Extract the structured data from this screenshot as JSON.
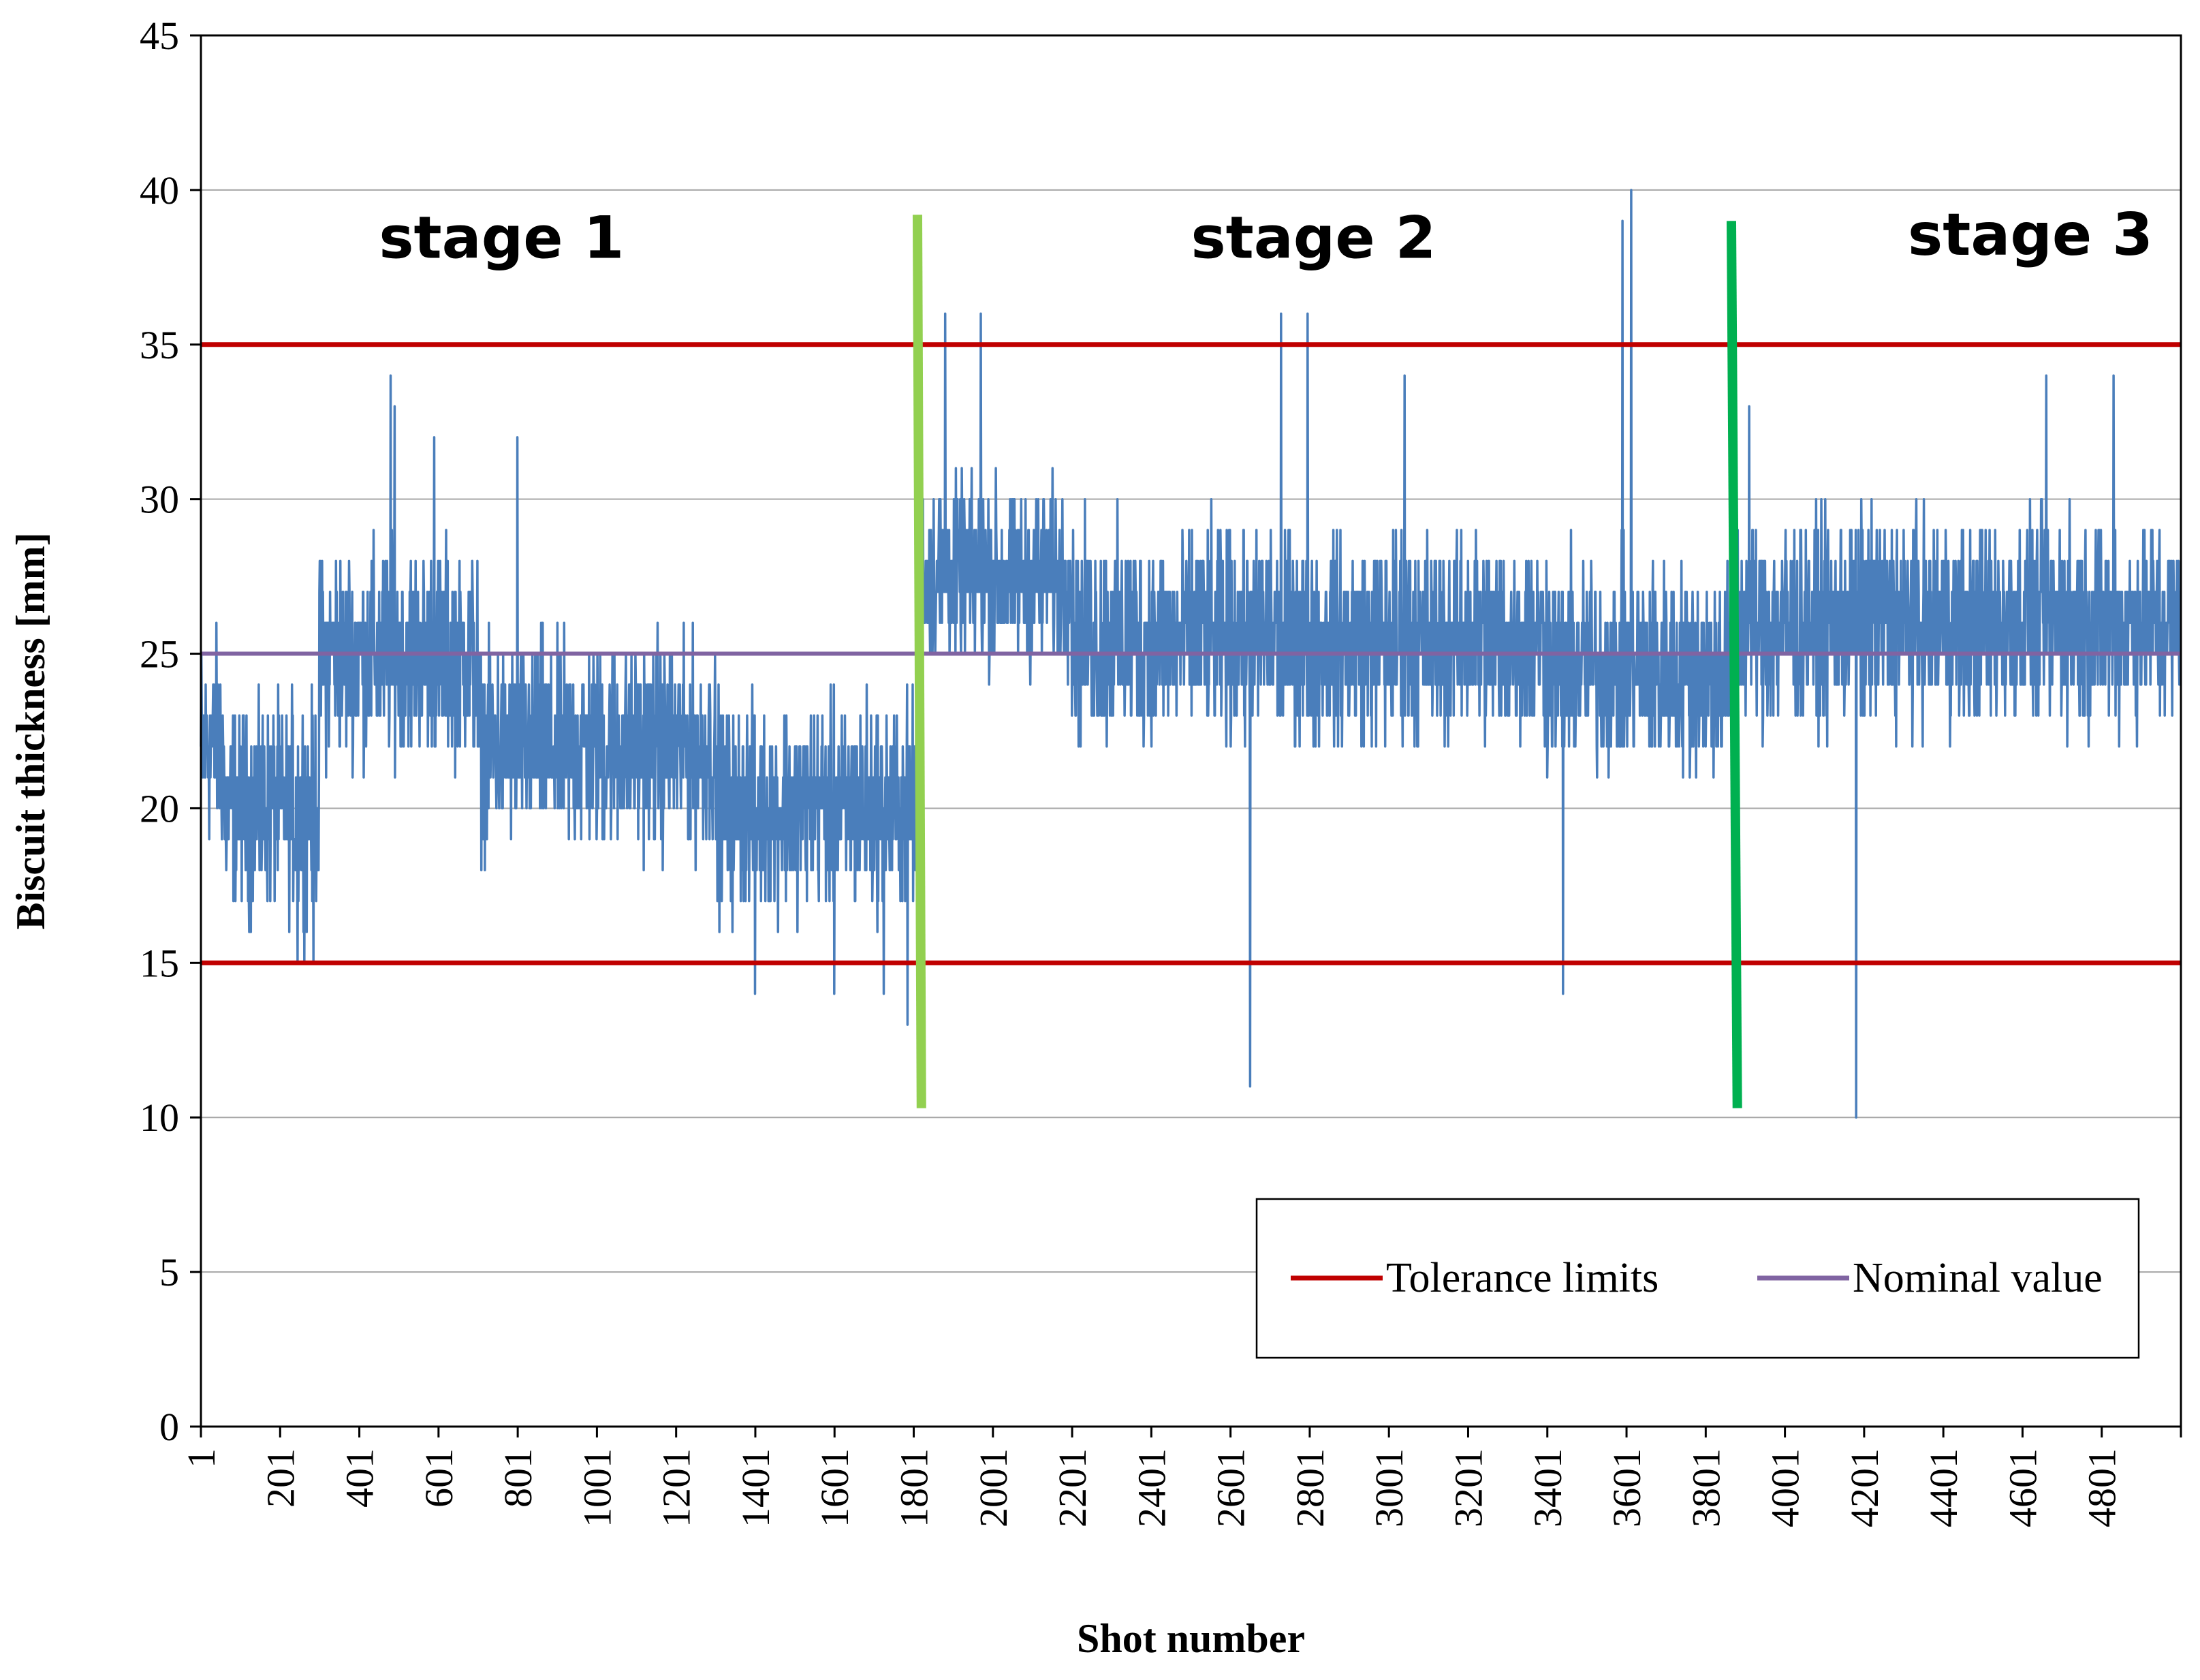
{
  "chart_data": {
    "type": "line",
    "title": "",
    "xlabel": "Shot number",
    "ylabel": "Biscuit thickness [mm]",
    "xlim": [
      1,
      5000
    ],
    "ylim": [
      0,
      45
    ],
    "y_ticks": [
      "0",
      "5",
      "10",
      "15",
      "20",
      "25",
      "30",
      "35",
      "40",
      "45"
    ],
    "x_ticks": [
      "1",
      "201",
      "401",
      "601",
      "801",
      "1001",
      "1201",
      "1401",
      "1601",
      "1801",
      "2001",
      "2201",
      "2401",
      "2601",
      "2801",
      "3001",
      "3201",
      "3401",
      "3601",
      "3801",
      "4001",
      "4201",
      "4401",
      "4601",
      "4801"
    ],
    "grid": true,
    "legend_position": "lower-right",
    "series": [
      {
        "name": "Biscuit thickness",
        "color": "#4a7ebb",
        "description": "Per-shot values; staged level segments plus spikes",
        "segments": [
          {
            "from": 1,
            "to": 60,
            "mean": 22,
            "spread": 3
          },
          {
            "from": 60,
            "to": 300,
            "mean": 20,
            "spread": 3
          },
          {
            "from": 300,
            "to": 700,
            "mean": 25,
            "spread": 3
          },
          {
            "from": 700,
            "to": 1300,
            "mean": 22,
            "spread": 3
          },
          {
            "from": 1300,
            "to": 1820,
            "mean": 20,
            "spread": 3
          },
          {
            "from": 1820,
            "to": 2200,
            "mean": 27.5,
            "spread": 2.5
          },
          {
            "from": 2200,
            "to": 3400,
            "mean": 25.5,
            "spread": 3
          },
          {
            "from": 3400,
            "to": 3880,
            "mean": 24.5,
            "spread": 3
          },
          {
            "from": 3880,
            "to": 5000,
            "mean": 26,
            "spread": 3
          }
        ],
        "spikes": [
          {
            "x": 480,
            "y": 34
          },
          {
            "x": 490,
            "y": 33
          },
          {
            "x": 590,
            "y": 32
          },
          {
            "x": 800,
            "y": 32
          },
          {
            "x": 245,
            "y": 15
          },
          {
            "x": 285,
            "y": 15
          },
          {
            "x": 1400,
            "y": 14
          },
          {
            "x": 1600,
            "y": 14
          },
          {
            "x": 1725,
            "y": 14
          },
          {
            "x": 1785,
            "y": 13
          },
          {
            "x": 1880,
            "y": 36
          },
          {
            "x": 1970,
            "y": 36
          },
          {
            "x": 2650,
            "y": 11
          },
          {
            "x": 2728,
            "y": 36
          },
          {
            "x": 2795,
            "y": 36
          },
          {
            "x": 3440,
            "y": 14
          },
          {
            "x": 3590,
            "y": 39
          },
          {
            "x": 3612,
            "y": 40
          },
          {
            "x": 3910,
            "y": 33
          },
          {
            "x": 4180,
            "y": 10
          },
          {
            "x": 4660,
            "y": 34
          },
          {
            "x": 4830,
            "y": 34
          },
          {
            "x": 3040,
            "y": 34
          }
        ]
      },
      {
        "name": "Tolerance limits",
        "color": "#c00000",
        "values": [
          15,
          35
        ]
      },
      {
        "name": "Nominal value",
        "color": "#8064a2",
        "value": 25
      }
    ],
    "stage_dividers": [
      {
        "x_bottom": 1820,
        "x_top": 1810,
        "y_from": 10.3,
        "y_to": 39.2,
        "color": "#92d050"
      },
      {
        "x_bottom": 3880,
        "x_top": 3865,
        "y_from": 10.3,
        "y_to": 39.0,
        "color": "#00b050"
      }
    ],
    "annotations": [
      {
        "text": "stage 1",
        "x": 760,
        "y": 37.8
      },
      {
        "text": "stage 2",
        "x": 2810,
        "y": 37.8
      },
      {
        "text": "stage 3",
        "x": 4620,
        "y": 37.9
      }
    ],
    "legend": [
      {
        "label": "Tolerance limits",
        "color": "#c00000"
      },
      {
        "label": "Nominal value",
        "color": "#8064a2"
      }
    ]
  }
}
